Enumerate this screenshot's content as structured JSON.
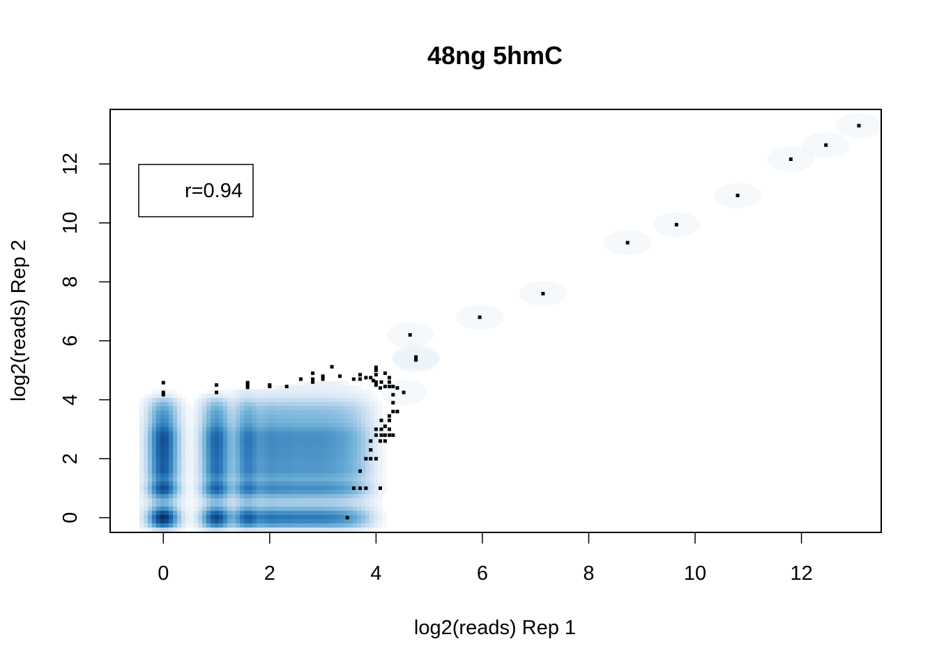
{
  "chart_data": {
    "type": "scatter",
    "title": "48ng 5hmC",
    "xlabel": "log2(reads) Rep 1",
    "ylabel": "log2(reads) Rep 2",
    "xlim": [
      -1.0,
      13.5
    ],
    "ylim": [
      -0.5,
      13.85
    ],
    "xticks": [
      0,
      2,
      4,
      6,
      8,
      10,
      12
    ],
    "yticks": [
      0,
      2,
      4,
      6,
      8,
      10,
      12
    ],
    "x_tick_labels": [
      "0",
      "2",
      "4",
      "6",
      "8",
      "10",
      "12"
    ],
    "y_tick_labels": [
      "0",
      "2",
      "4",
      "6",
      "8",
      "10",
      "12"
    ],
    "legend": {
      "text": "r=0.94",
      "position": "top-left"
    },
    "density_color": "#08519c",
    "point_color": "#000000",
    "density_columns": [
      {
        "x": 0.0,
        "weight": 1.0,
        "ymax": 4.0
      },
      {
        "x": 1.0,
        "weight": 0.85,
        "ymax": 4.1
      },
      {
        "x": 1.585,
        "weight": 0.7,
        "ymax": 4.3
      },
      {
        "x": 2.0,
        "weight": 0.5,
        "ymax": 4.4
      },
      {
        "x": 2.32,
        "weight": 0.4,
        "ymax": 4.5
      },
      {
        "x": 2.585,
        "weight": 0.32,
        "ymax": 4.5
      },
      {
        "x": 2.81,
        "weight": 0.28,
        "ymax": 4.6
      },
      {
        "x": 3.0,
        "weight": 0.24,
        "ymax": 4.6
      },
      {
        "x": 3.17,
        "weight": 0.2,
        "ymax": 4.6
      },
      {
        "x": 3.32,
        "weight": 0.17,
        "ymax": 4.6
      },
      {
        "x": 3.46,
        "weight": 0.14,
        "ymax": 4.5
      },
      {
        "x": 3.58,
        "weight": 0.1,
        "ymax": 4.5
      },
      {
        "x": 3.7,
        "weight": 0.07,
        "ymax": 4.4
      },
      {
        "x": 3.81,
        "weight": 0.05,
        "ymax": 4.3
      }
    ],
    "density_rows": [
      {
        "y": 0.0,
        "weight": 1.0
      },
      {
        "y": 1.0,
        "weight": 0.85
      },
      {
        "y": 1.585,
        "weight": 0.7
      },
      {
        "y": 2.0,
        "weight": 0.6
      },
      {
        "y": 2.32,
        "weight": 0.5
      },
      {
        "y": 2.585,
        "weight": 0.45
      },
      {
        "y": 2.81,
        "weight": 0.4
      },
      {
        "y": 3.0,
        "weight": 0.35
      },
      {
        "y": 3.32,
        "weight": 0.3
      },
      {
        "y": 3.58,
        "weight": 0.22
      },
      {
        "y": 3.81,
        "weight": 0.15
      }
    ],
    "points": [
      [
        0.0,
        4.58
      ],
      [
        0.0,
        4.17
      ],
      [
        0.0,
        4.25
      ],
      [
        1.0,
        4.5
      ],
      [
        1.0,
        4.25
      ],
      [
        1.585,
        4.58
      ],
      [
        1.585,
        4.42
      ],
      [
        1.585,
        4.5
      ],
      [
        2.0,
        4.5
      ],
      [
        2.0,
        4.45
      ],
      [
        2.32,
        4.45
      ],
      [
        2.585,
        4.7
      ],
      [
        2.81,
        4.9
      ],
      [
        2.81,
        4.7
      ],
      [
        2.81,
        4.6
      ],
      [
        3.0,
        4.8
      ],
      [
        3.0,
        4.7
      ],
      [
        3.17,
        5.12
      ],
      [
        3.32,
        4.8
      ],
      [
        3.58,
        4.7
      ],
      [
        3.7,
        4.85
      ],
      [
        3.7,
        4.7
      ],
      [
        3.81,
        4.75
      ],
      [
        3.9,
        4.75
      ],
      [
        3.95,
        4.65
      ],
      [
        4.0,
        5.1
      ],
      [
        4.0,
        5.0
      ],
      [
        4.0,
        4.85
      ],
      [
        4.0,
        4.6
      ],
      [
        4.0,
        4.5
      ],
      [
        4.08,
        4.4
      ],
      [
        4.1,
        4.6
      ],
      [
        4.17,
        4.9
      ],
      [
        4.17,
        4.45
      ],
      [
        4.25,
        4.75
      ],
      [
        4.25,
        4.6
      ],
      [
        4.25,
        4.45
      ],
      [
        4.32,
        4.45
      ],
      [
        4.32,
        4.17
      ],
      [
        4.32,
        3.9
      ],
      [
        4.4,
        4.4
      ],
      [
        4.4,
        3.6
      ],
      [
        4.32,
        3.6
      ],
      [
        4.25,
        3.45
      ],
      [
        4.25,
        3.3
      ],
      [
        4.1,
        3.3
      ],
      [
        4.25,
        3.0
      ],
      [
        4.17,
        3.1
      ],
      [
        4.0,
        3.0
      ],
      [
        4.1,
        3.0
      ],
      [
        4.17,
        2.8
      ],
      [
        4.25,
        2.8
      ],
      [
        4.32,
        2.8
      ],
      [
        4.0,
        2.8
      ],
      [
        4.1,
        2.8
      ],
      [
        4.08,
        2.6
      ],
      [
        4.17,
        2.6
      ],
      [
        3.9,
        2.6
      ],
      [
        3.9,
        2.3
      ],
      [
        3.81,
        2.0
      ],
      [
        3.9,
        2.0
      ],
      [
        4.0,
        2.0
      ],
      [
        3.7,
        1.58
      ],
      [
        3.58,
        1.0
      ],
      [
        3.7,
        1.0
      ],
      [
        3.81,
        1.0
      ],
      [
        4.08,
        1.0
      ],
      [
        3.46,
        0.0
      ],
      [
        4.52,
        4.25
      ],
      [
        4.64,
        6.2
      ],
      [
        4.75,
        5.45
      ],
      [
        4.75,
        5.35
      ],
      [
        5.95,
        6.8
      ],
      [
        7.14,
        7.6
      ],
      [
        8.73,
        9.33
      ],
      [
        9.65,
        9.94
      ],
      [
        10.8,
        10.93
      ],
      [
        11.8,
        12.16
      ],
      [
        12.46,
        12.64
      ],
      [
        13.08,
        13.3
      ]
    ]
  }
}
